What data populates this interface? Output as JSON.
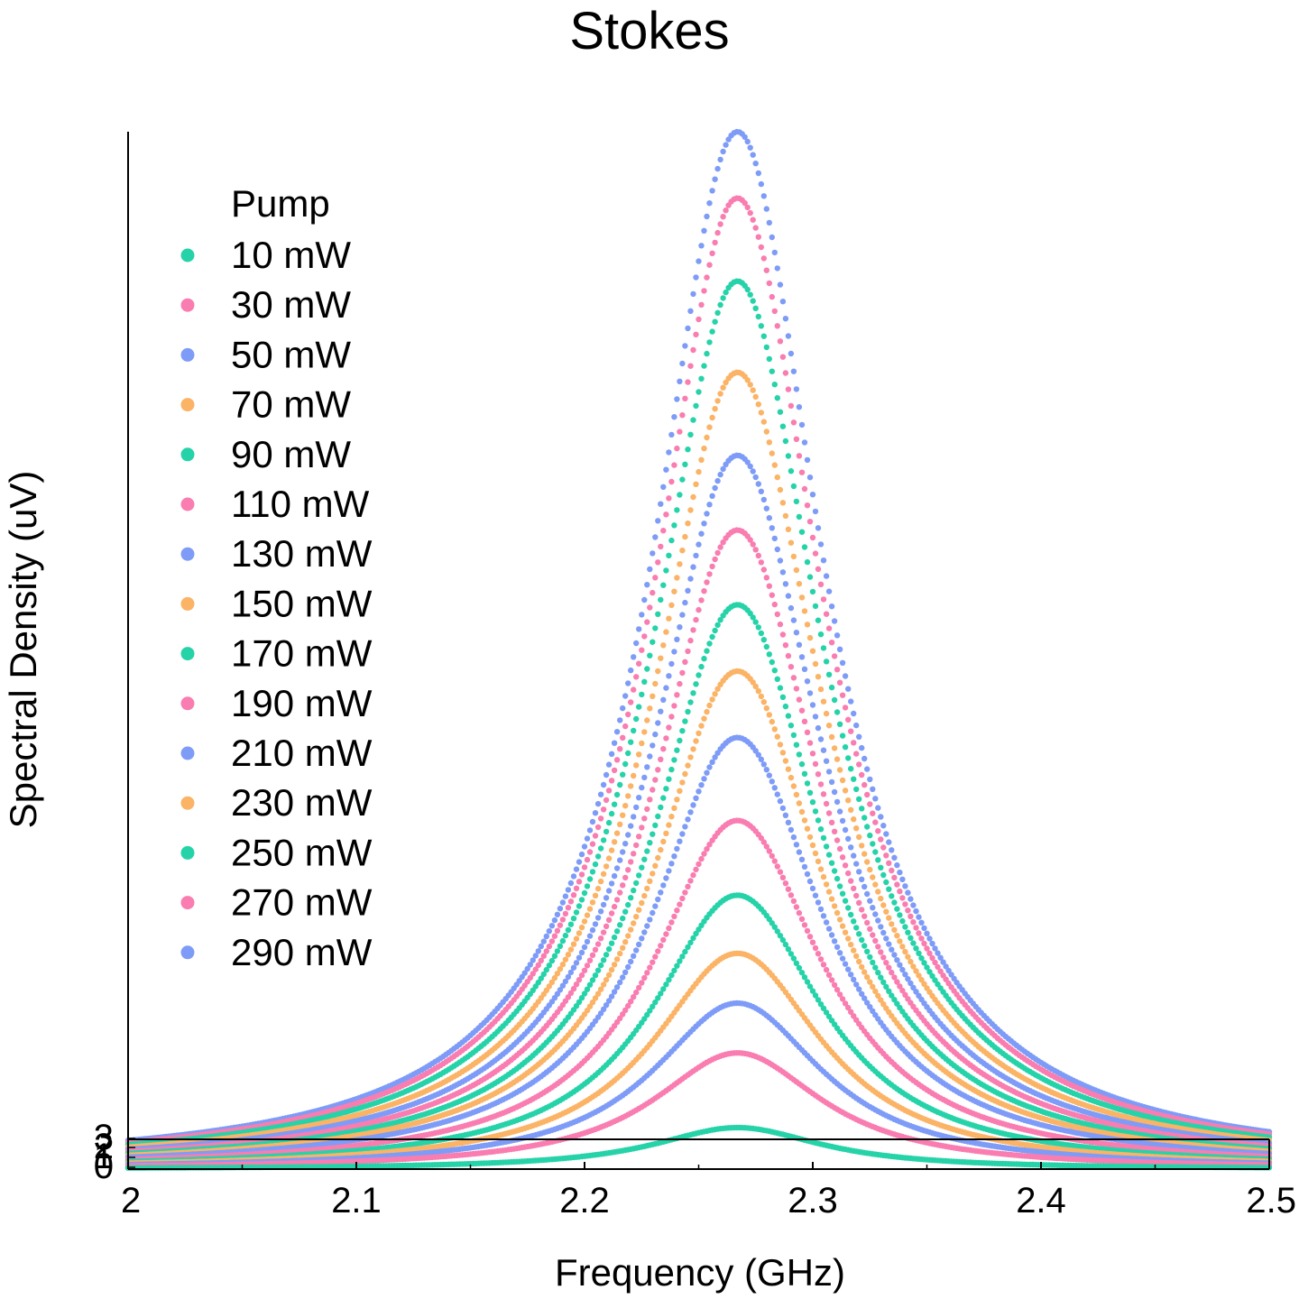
{
  "chart_data": {
    "type": "scatter",
    "title": "Stokes",
    "xlabel": "Frequency (GHz)",
    "ylabel": "Spectral Density (uV)",
    "xlim": [
      2.0,
      2.5
    ],
    "x_ticks": [
      "2",
      "2.1",
      "2.2",
      "2.3",
      "2.4",
      "2.5"
    ],
    "y_ticks": [
      "0",
      "1",
      "2",
      "3"
    ],
    "center_frequency_ghz": 2.267,
    "legend_title": "Pump",
    "legend_position": "top-left",
    "series": [
      {
        "name": "10 mW",
        "color": "#26d3a9",
        "peak": 0.05
      },
      {
        "name": "30 mW",
        "color": "#f97db0",
        "peak": 0.14
      },
      {
        "name": "50 mW",
        "color": "#7e9cf7",
        "peak": 0.2
      },
      {
        "name": "70 mW",
        "color": "#fbb366",
        "peak": 0.26
      },
      {
        "name": "90 mW",
        "color": "#26d3a9",
        "peak": 0.33
      },
      {
        "name": "110 mW",
        "color": "#f97db0",
        "peak": 0.42
      },
      {
        "name": "130 mW",
        "color": "#7e9cf7",
        "peak": 0.52
      },
      {
        "name": "150 mW",
        "color": "#fbb366",
        "peak": 0.6
      },
      {
        "name": "170 mW",
        "color": "#26d3a9",
        "peak": 0.68
      },
      {
        "name": "190 mW",
        "color": "#f97db0",
        "peak": 0.77
      },
      {
        "name": "210 mW",
        "color": "#7e9cf7",
        "peak": 0.86
      },
      {
        "name": "230 mW",
        "color": "#fbb366",
        "peak": 0.96
      },
      {
        "name": "250 mW",
        "color": "#26d3a9",
        "peak": 1.07
      },
      {
        "name": "270 mW",
        "color": "#f97db0",
        "peak": 1.17
      },
      {
        "name": "290 mW",
        "color": "#7e9cf7",
        "peak": 1.25
      }
    ]
  }
}
